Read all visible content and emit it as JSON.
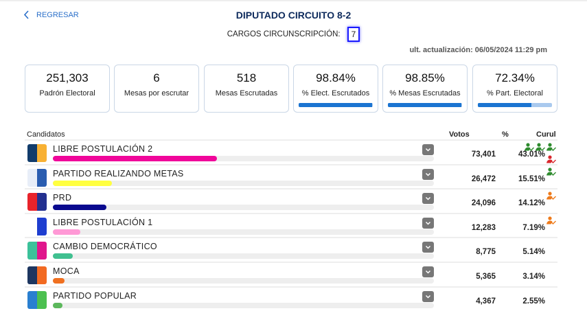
{
  "nav": {
    "back_label": "REGRESAR"
  },
  "header": {
    "title": "DIPUTADO CIRCUITO 8-2",
    "cargos_label": "CARGOS CIRCUNSCRIPCIÓN:",
    "cargos_value": "7",
    "updated": "ult. actualización: 06/05/2024 11:29 pm"
  },
  "stats": [
    {
      "value": "251,303",
      "label": "Padrón Electoral"
    },
    {
      "value": "6",
      "label": "Mesas por escrutar"
    },
    {
      "value": "518",
      "label": "Mesas Escrutadas"
    },
    {
      "value": "98.84%",
      "label": "% Elect. Escrutados",
      "progress": 98.84
    },
    {
      "value": "98.85%",
      "label": "% Mesas Escrutadas",
      "progress": 98.85
    },
    {
      "value": "72.34%",
      "label": "% Part. Electoral",
      "progress": 72.34
    }
  ],
  "table": {
    "headers": {
      "candidates": "Candidatos",
      "votes": "Votos",
      "pct": "%",
      "curul": "Curul"
    },
    "rows": [
      {
        "name": "LIBRE POSTULACIÓN 2",
        "votes": "73,401",
        "pct": "43.01%",
        "percent": 43.01,
        "color": "#f0069a",
        "logo": [
          "#123c6b",
          "#f8b133"
        ],
        "curul": [
          [
            "#2e8b2e",
            "#2e8b2e",
            "#2e8b2e"
          ],
          [
            "#d9262c"
          ]
        ]
      },
      {
        "name": "PARTIDO REALIZANDO METAS",
        "votes": "26,472",
        "pct": "15.51%",
        "percent": 15.51,
        "color": "#ffff40",
        "logo": [
          "#e8eef8",
          "#2a5db0"
        ],
        "curul": [
          [
            "#2e8b2e"
          ]
        ]
      },
      {
        "name": "PRD",
        "votes": "24,096",
        "pct": "14.12%",
        "percent": 14.12,
        "color": "#0a0a8f",
        "logo": [
          "#e8232b",
          "#23308f"
        ],
        "curul": [
          [
            "#ee7a1a"
          ]
        ]
      },
      {
        "name": "LIBRE POSTULACIÓN 1",
        "votes": "12,283",
        "pct": "7.19%",
        "percent": 7.19,
        "color": "#ff99d6",
        "logo": [
          "#fff",
          "#1e3ed0"
        ],
        "curul": [
          [
            "#ee7a1a"
          ]
        ]
      },
      {
        "name": "CAMBIO DEMOCRÁTICO",
        "votes": "8,775",
        "pct": "5.14%",
        "percent": 5.14,
        "color": "#40c090",
        "logo": [
          "#3cc19a",
          "#e0168c"
        ],
        "curul": []
      },
      {
        "name": "MOCA",
        "votes": "5,365",
        "pct": "3.14%",
        "percent": 3.14,
        "color": "#f07020",
        "logo": [
          "#1d3660",
          "#f26a22"
        ],
        "curul": []
      },
      {
        "name": "PARTIDO POPULAR",
        "votes": "4,367",
        "pct": "2.55%",
        "percent": 2.55,
        "color": "#5cb85c",
        "logo": [
          "#2a7fd0",
          "#4cc050"
        ],
        "curul": []
      }
    ]
  }
}
